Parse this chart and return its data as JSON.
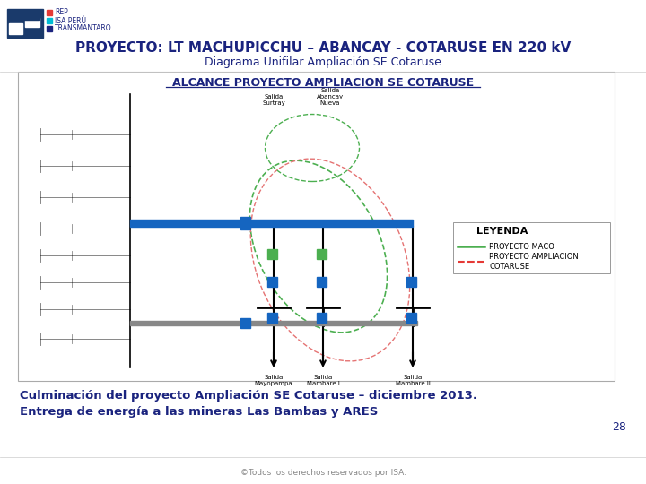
{
  "title": "PROYECTO: LT MACHUPICCHU – ABANCAY - COTARUSE EN 220 kV",
  "subtitle": "Diagrama Unifilar Ampliación SE Cotaruse",
  "diagram_title": "ALCANCE PROYECTO AMPLIACION SE COTARUSE",
  "body_text_line1": "Culminación del proyecto Ampliación SE Cotaruse – diciembre 2013.",
  "body_text_line2": "Entrega de energía a las mineras Las Bambas y ARES",
  "footer": "©Todos los derechos reservados por ISA.",
  "page_num": "28",
  "logo_text": [
    "REP",
    "ISA PERÚ",
    "TRANSMANTARO"
  ],
  "title_color": "#1a237e",
  "subtitle_color": "#1a237e",
  "body_color": "#1a237e",
  "diagram_title_color": "#1a237e",
  "bg_color": "#ffffff",
  "blue_bar_color": "#1565c0",
  "gray_bar_color": "#888888",
  "green_sq_color": "#4caf50",
  "blue_sq_color": "#1565c0",
  "leyenda_green": "#4caf50",
  "leyenda_red": "#e53935",
  "logo_colors": [
    "#e53935",
    "#00bcd4",
    "#1a237e"
  ]
}
